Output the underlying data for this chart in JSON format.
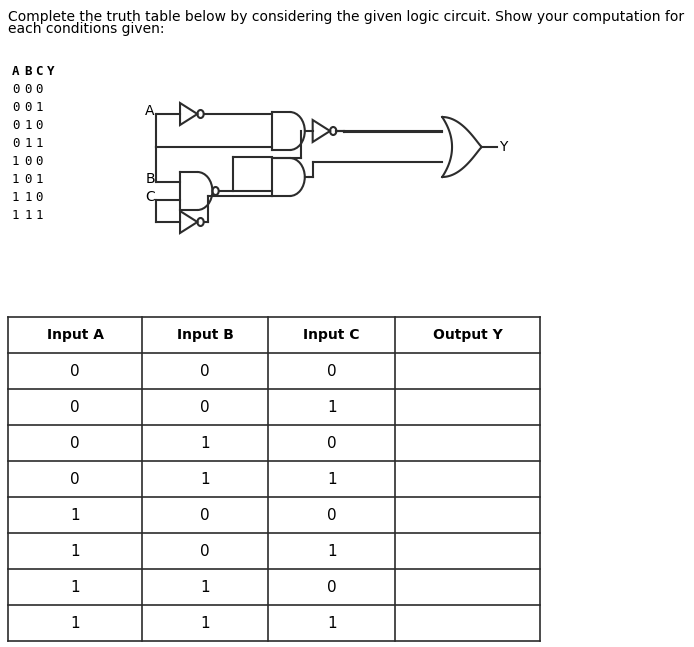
{
  "title": "Complete the truth table below by considering the given logic circuit. Show your computation for\neach conditions given:",
  "title_fontsize": 10,
  "background_color": "#ffffff",
  "table_headers": [
    "Input A",
    "Input B",
    "Input C",
    "Output Y"
  ],
  "table_rows": [
    [
      "0",
      "0",
      "0",
      ""
    ],
    [
      "0",
      "0",
      "1",
      ""
    ],
    [
      "0",
      "1",
      "0",
      ""
    ],
    [
      "0",
      "1",
      "1",
      ""
    ],
    [
      "1",
      "0",
      "0",
      ""
    ],
    [
      "1",
      "0",
      "1",
      ""
    ],
    [
      "1",
      "1",
      "0",
      ""
    ],
    [
      "1",
      "1",
      "1",
      ""
    ]
  ],
  "abc_labels": [
    "A B C Y",
    "0 0 0",
    "0 0 1",
    "0 1 0",
    "0 1 1",
    "1 0 0",
    "1 0 1",
    "1 1 0",
    "1 1 1"
  ],
  "line_color": "#2c2c2c",
  "text_color": "#000000"
}
